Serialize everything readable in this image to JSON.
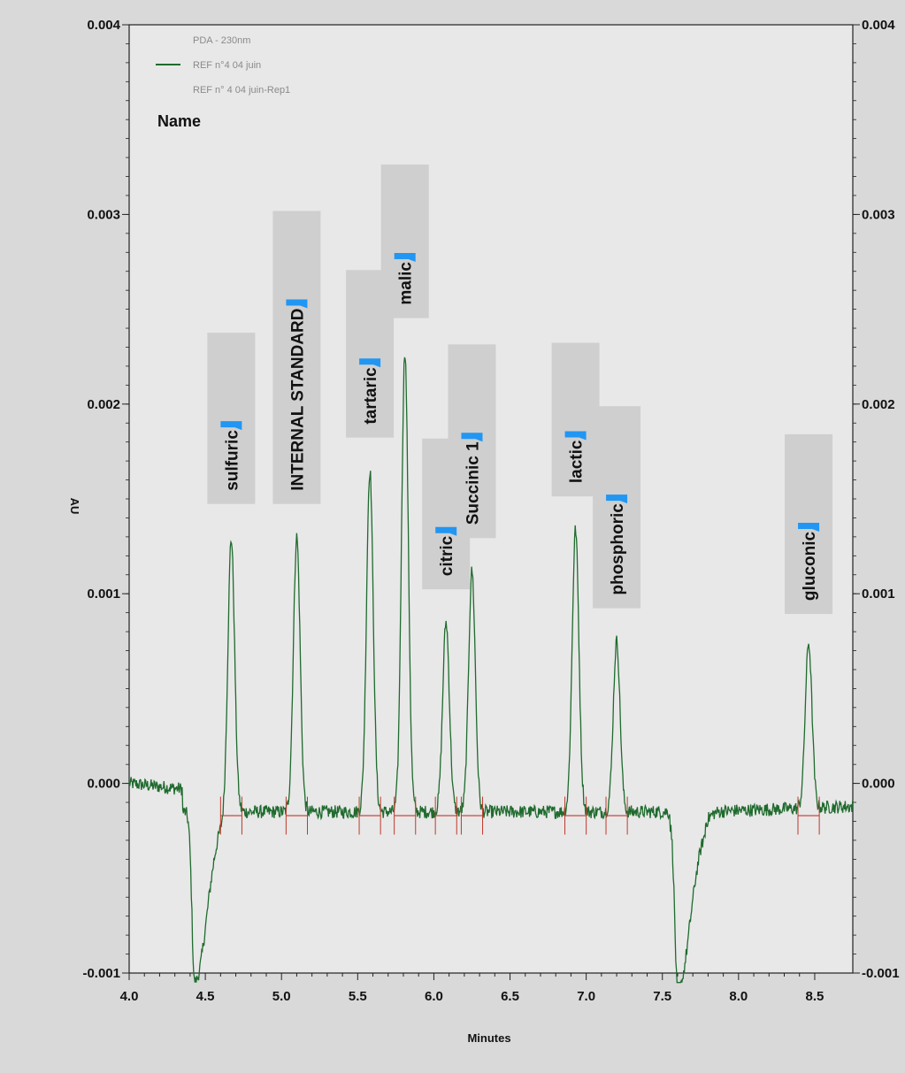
{
  "chart_data": {
    "type": "line",
    "title": "",
    "xlabel": "Minutes",
    "ylabel": "AU",
    "xlim": [
      4.0,
      8.75
    ],
    "ylim": [
      -0.001,
      0.004
    ],
    "x_ticks": [
      "4.0",
      "4.5",
      "5.0",
      "5.5",
      "6.0",
      "6.5",
      "7.0",
      "7.5",
      "8.0",
      "8.5"
    ],
    "y_ticks_left": [
      "-0.001",
      "0.000",
      "0.001",
      "0.002",
      "0.003",
      "0.004"
    ],
    "y_ticks_right": [
      "-0.001",
      "0.000",
      "0.001",
      "0.002",
      "0.003",
      "0.004"
    ],
    "legend": {
      "header": "PDA - 230nm",
      "entries": [
        "REF n°4 04 juin",
        "REF n° 4 04 juin-Rep1"
      ],
      "name_label": "Name"
    },
    "baseline_level": -0.00015,
    "peaks": [
      {
        "name": "sulfuric",
        "rt": 4.67,
        "height": 0.00145
      },
      {
        "name": "INTERNAL STANDARD",
        "rt": 5.1,
        "height": 0.00145
      },
      {
        "name": "tartaric",
        "rt": 5.58,
        "height": 0.0018
      },
      {
        "name": "malic",
        "rt": 5.81,
        "height": 0.00243
      },
      {
        "name": "citric",
        "rt": 6.08,
        "height": 0.001
      },
      {
        "name": "Succinic 1",
        "rt": 6.25,
        "height": 0.00127
      },
      {
        "name": "lactic",
        "rt": 6.93,
        "height": 0.00149
      },
      {
        "name": "phosphoric",
        "rt": 7.2,
        "height": 0.0009
      },
      {
        "name": "gluconic",
        "rt": 8.46,
        "height": 0.00087
      }
    ],
    "negative_dips": [
      {
        "rt": 4.43,
        "depth": -0.00105
      },
      {
        "rt": 7.6,
        "depth": -0.00105
      }
    ],
    "colors": {
      "trace": "#1f6b2e",
      "integration": "#c0392b",
      "marker": "#2196f3",
      "label_box": "#cfcfcf",
      "plot_bg": "#e8e8e8",
      "page_bg": "#d9d9d9"
    },
    "grid": false,
    "legend_position": "top-left"
  }
}
